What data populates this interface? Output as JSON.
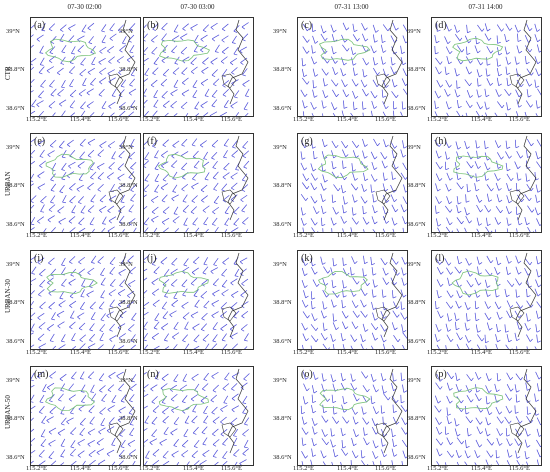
{
  "columns": [
    "07-30 02:00",
    "07-30 03:00",
    "07-31 13:00",
    "07-31 14:00"
  ],
  "rows": [
    "CTR",
    "URBAN",
    "URBAN-30",
    "URBAN-50"
  ],
  "panel_labels": [
    "(a)",
    "(b)",
    "(c)",
    "(d)",
    "(e)",
    "(f)",
    "(g)",
    "(h)",
    "(i)",
    "(j)",
    "(k)",
    "(l)",
    "(m)",
    "(n)",
    "(o)",
    "(p)"
  ],
  "y_ticks": [
    "39°N",
    "38.8°N",
    "38.6°N"
  ],
  "x_ticks": [
    "115.2°E",
    "115.4°E",
    "115.6°E"
  ],
  "colors": {
    "barb": "#4a4ad8",
    "city_outline": "#7ac27a",
    "coast": "#333333",
    "frame": "#333333"
  },
  "barb_direction_by_column_deg": [
    225,
    225,
    290,
    290
  ]
}
